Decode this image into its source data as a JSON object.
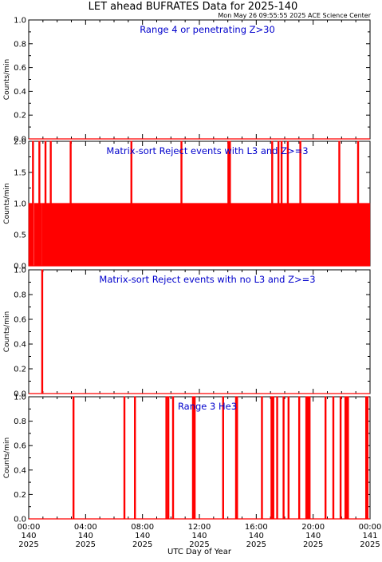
{
  "title": "LET ahead BUFRATES Data for 2025-140",
  "timestamp": "Mon May 26 09:55:55 2025 ACE Science Center",
  "xlabel": "UTC Day of Year",
  "colors": {
    "trace": "#ff0000",
    "panel_label": "#0000cc",
    "axis": "#000000"
  },
  "chart_data": [
    {
      "type": "line",
      "title": "Range 4 or  penetrating Z>30",
      "ylabel": "Counts/min",
      "ylim": [
        0,
        1.0
      ],
      "yticks": [
        "0.0",
        "0.2",
        "0.4",
        "0.6",
        "0.8",
        "1.0"
      ],
      "xlim_hours": [
        0,
        24
      ],
      "series": [
        {
          "x": [
            0,
            24
          ],
          "y": [
            0,
            0
          ]
        }
      ]
    },
    {
      "type": "line",
      "title": "Matrix-sort Reject events with L3 and Z>=3",
      "ylabel": "Counts/min",
      "ylim": [
        0,
        2.0
      ],
      "yticks": [
        "0.0",
        "0.5",
        "1.0",
        "1.5",
        "2.0"
      ],
      "xlim_hours": [
        0,
        24
      ],
      "series": [
        {
          "spikes_x": [
            0.05,
            0.18,
            0.3,
            0.45,
            0.58,
            0.62,
            0.75,
            0.88,
            1.02,
            1.1,
            1.18,
            1.27,
            1.36,
            1.42,
            1.55,
            1.63,
            1.72,
            1.8,
            1.92,
            2.05,
            2.12,
            2.2,
            2.33,
            2.4,
            2.52,
            2.64,
            2.72,
            2.85,
            2.95,
            3.05,
            3.12,
            3.25,
            3.36,
            3.44,
            3.56,
            3.68,
            3.76,
            3.88,
            3.97,
            4.08,
            4.2,
            4.3,
            4.42,
            4.5,
            4.62,
            4.75,
            4.86,
            4.95,
            5.06,
            5.15,
            5.28,
            5.37,
            5.48,
            5.58,
            5.7,
            5.8,
            5.92,
            6.02,
            6.12,
            6.25,
            6.35,
            6.46,
            6.58,
            6.66,
            6.78,
            6.9,
            7.0,
            7.1,
            7.22,
            7.32,
            7.44,
            7.55,
            7.66,
            7.76,
            7.88,
            7.98,
            8.1,
            8.2,
            8.32,
            8.42,
            8.55,
            8.65,
            8.76,
            8.86,
            8.98,
            9.08,
            9.2,
            9.3,
            9.42,
            9.53,
            9.63,
            9.75,
            9.86,
            9.96,
            10.08,
            10.18,
            10.3,
            10.4,
            10.52,
            10.63,
            10.74,
            10.85,
            10.95,
            11.06,
            11.18,
            11.28,
            11.4,
            11.5,
            11.62,
            11.72,
            11.84,
            11.95,
            12.05,
            12.16,
            12.28,
            12.38,
            12.5,
            12.6,
            12.72,
            12.82,
            12.94,
            13.05,
            13.15,
            13.27,
            13.38,
            13.48,
            13.6,
            13.7,
            13.82,
            13.92,
            14.04,
            14.15,
            14.25,
            14.37,
            14.48,
            14.58,
            14.7,
            14.8,
            14.92,
            15.03,
            15.14,
            15.25,
            15.36,
            15.46,
            15.58,
            15.68,
            15.8,
            15.9,
            16.02,
            16.13,
            16.24,
            16.34,
            16.46,
            16.56,
            16.68,
            16.78,
            16.9,
            17.01,
            17.12,
            17.22,
            17.34,
            17.44,
            17.56,
            17.66,
            17.78,
            17.88,
            18.0,
            18.11,
            18.22,
            18.32,
            18.44,
            18.54,
            18.66,
            18.76,
            18.88,
            18.98,
            19.1,
            19.21,
            19.32,
            19.42,
            19.54,
            19.64,
            19.76,
            19.86,
            19.98,
            20.08,
            20.2,
            20.31,
            20.42,
            20.52,
            20.64,
            20.74,
            20.86,
            20.96,
            21.08,
            21.18,
            21.3,
            21.41,
            21.52,
            21.62,
            21.74,
            21.84,
            21.96,
            22.06,
            22.18,
            22.28,
            22.4,
            22.51,
            22.62,
            22.72,
            22.84,
            22.94,
            23.06,
            23.16,
            23.28,
            23.38,
            23.5,
            23.61,
            23.72,
            23.82,
            23.94
          ],
          "spikes_y": [
            1,
            1,
            2,
            1,
            1,
            1,
            2,
            1,
            1,
            1,
            2,
            1,
            1,
            1,
            2,
            1,
            1,
            1,
            1,
            1,
            1,
            1,
            1,
            1,
            1,
            1,
            1,
            1,
            2,
            1,
            1,
            1,
            1,
            1,
            1,
            1,
            1,
            1,
            1,
            1,
            1,
            1,
            1,
            1,
            1,
            1,
            1,
            1,
            1,
            1,
            1,
            1,
            1,
            1,
            1,
            1,
            1,
            1,
            1,
            1,
            1,
            1,
            1,
            1,
            1,
            1,
            1,
            1,
            2,
            1,
            1,
            1,
            1,
            1,
            1,
            1,
            1,
            1,
            1,
            1,
            1,
            1,
            1,
            1,
            1,
            1,
            1,
            1,
            1,
            1,
            1,
            1,
            1,
            1,
            1,
            1,
            1,
            1,
            1,
            1,
            2,
            1,
            1,
            1,
            1,
            1,
            1,
            1,
            1,
            1,
            1,
            1,
            1,
            1,
            1,
            1,
            1,
            1,
            1,
            1,
            1,
            1,
            1,
            1,
            1,
            1,
            1,
            1,
            1,
            1,
            2,
            2,
            1,
            1,
            1,
            1,
            1,
            1,
            1,
            1,
            1,
            1,
            1,
            1,
            1,
            1,
            1,
            1,
            1,
            1,
            1,
            1,
            1,
            1,
            1,
            1,
            1,
            1,
            2,
            1,
            1,
            1,
            2,
            1,
            2,
            1,
            1,
            1,
            2,
            1,
            1,
            1,
            1,
            1,
            1,
            1,
            2,
            1,
            1,
            1,
            1,
            1,
            1,
            1,
            1,
            1,
            1,
            1,
            1,
            1,
            1,
            1,
            1,
            1,
            1,
            1,
            1,
            1,
            1,
            1,
            1,
            2,
            1,
            1,
            1,
            1,
            1,
            1,
            1,
            1,
            1,
            1,
            1,
            2,
            1,
            1,
            1,
            1,
            1,
            1,
            1,
            1,
            1,
            1,
            1
          ]
        }
      ]
    },
    {
      "type": "line",
      "title": "Matrix-sort Reject events with no L3 and Z>=3",
      "ylabel": "Counts/min",
      "ylim": [
        0,
        1.0
      ],
      "yticks": [
        "0.0",
        "0.2",
        "0.4",
        "0.6",
        "0.8",
        "1.0"
      ],
      "xlim_hours": [
        0,
        24
      ],
      "series": [
        {
          "spikes_x": [
            0.95
          ],
          "spikes_y": [
            1
          ]
        }
      ]
    },
    {
      "type": "line",
      "title": "Range 3 He3",
      "ylabel": "Counts/min",
      "ylim": [
        0,
        1.0
      ],
      "yticks": [
        "0.0",
        "0.2",
        "0.4",
        "0.6",
        "0.8",
        "1.0"
      ],
      "xlim_hours": [
        0,
        24
      ],
      "series": [
        {
          "spikes_x": [
            3.15,
            6.73,
            7.47,
            9.68,
            9.82,
            10.15,
            11.55,
            11.67,
            13.67,
            14.58,
            14.65,
            16.4,
            17.07,
            17.2,
            17.47,
            17.92,
            18.27,
            19.02,
            19.52,
            19.6,
            19.68,
            19.75,
            20.87,
            21.42,
            21.93,
            22.27,
            22.35,
            22.45,
            23.73,
            23.82
          ],
          "spikes_y": [
            1,
            1,
            1,
            1,
            1,
            1,
            1,
            1,
            1,
            1,
            1,
            1,
            1,
            1,
            1,
            1,
            1,
            1,
            1,
            1,
            1,
            1,
            1,
            1,
            1,
            1,
            1,
            1,
            1,
            1
          ]
        }
      ]
    }
  ],
  "x_ticks": [
    {
      "hours": 0,
      "time": "00:00",
      "doy": "140",
      "year": "2025"
    },
    {
      "hours": 4,
      "time": "04:00",
      "doy": "140",
      "year": "2025"
    },
    {
      "hours": 8,
      "time": "08:00",
      "doy": "140",
      "year": "2025"
    },
    {
      "hours": 12,
      "time": "12:00",
      "doy": "140",
      "year": "2025"
    },
    {
      "hours": 16,
      "time": "16:00",
      "doy": "140",
      "year": "2025"
    },
    {
      "hours": 20,
      "time": "20:00",
      "doy": "140",
      "year": "2025"
    },
    {
      "hours": 24,
      "time": "00:00",
      "doy": "141",
      "year": "2025"
    }
  ]
}
